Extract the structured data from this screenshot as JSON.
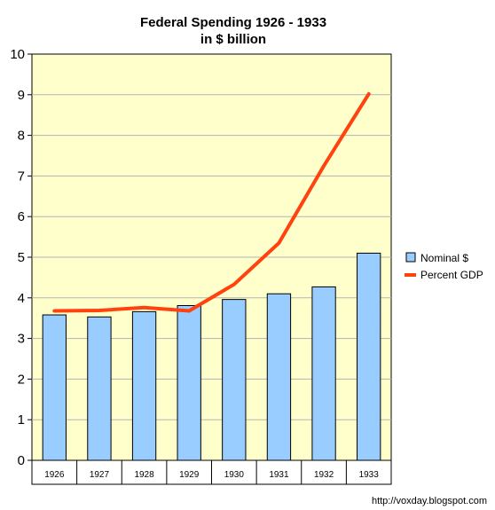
{
  "chart_data": {
    "type": "bar",
    "title": "Federal Spending 1926 - 1933",
    "subtitle": "in $ billion",
    "categories": [
      "1926",
      "1927",
      "1928",
      "1929",
      "1930",
      "1931",
      "1932",
      "1933"
    ],
    "ylim": [
      0,
      10
    ],
    "yticks": [
      "0",
      "1",
      "2",
      "3",
      "4",
      "5",
      "6",
      "7",
      "8",
      "9",
      "10"
    ],
    "grid": true,
    "legend_position": "right",
    "series": [
      {
        "name": "Nominal $",
        "type": "bar",
        "color": "#99ccff",
        "values": [
          3.58,
          3.53,
          3.66,
          3.81,
          3.96,
          4.1,
          4.27,
          5.1
        ]
      },
      {
        "name": "Percent GDP",
        "type": "line",
        "color": "#ff420e",
        "values": [
          3.68,
          3.69,
          3.76,
          3.68,
          4.33,
          5.35,
          7.25,
          9.02
        ]
      }
    ],
    "plot_background": "#ffffcc",
    "source_note": "http://voxday.blogspot.com"
  }
}
